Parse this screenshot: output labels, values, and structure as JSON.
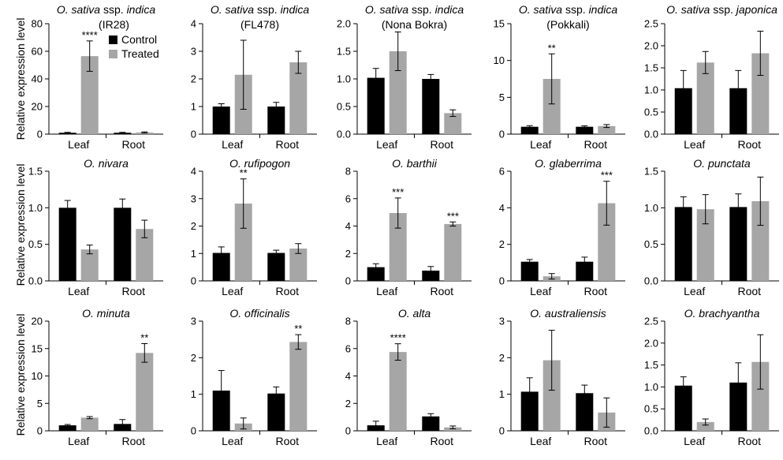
{
  "ylabel": "Relative expression level",
  "legend": {
    "control_label": "Control",
    "treated_label": "Treated",
    "control_color": "#000000",
    "treated_color": "#a6a6a6",
    "placement": "top-left of first panel"
  },
  "chart_data": [
    {
      "type": "bar",
      "title": "O. sativa",
      "title_suffix": "ssp. indica",
      "subtitle": "(IR28)",
      "categories": [
        "Leaf",
        "Root"
      ],
      "ylim": [
        0,
        80
      ],
      "yticks": [
        0,
        20,
        40,
        60,
        80
      ],
      "series": [
        {
          "name": "Control",
          "values": [
            1.0,
            1.0
          ],
          "errors": [
            0.3,
            0.3
          ]
        },
        {
          "name": "Treated",
          "values": [
            56.5,
            1.2
          ],
          "errors": [
            11.0,
            0.4
          ]
        }
      ],
      "annotations": [
        {
          "category": "Leaf",
          "series": "Treated",
          "text": "****"
        }
      ]
    },
    {
      "type": "bar",
      "title": "O. sativa",
      "title_suffix": "ssp. indica",
      "subtitle": "(FL478)",
      "categories": [
        "Leaf",
        "Root"
      ],
      "ylim": [
        0,
        4
      ],
      "yticks": [
        0,
        1,
        2,
        3,
        4
      ],
      "series": [
        {
          "name": "Control",
          "values": [
            1.0,
            1.0
          ],
          "errors": [
            0.1,
            0.15
          ]
        },
        {
          "name": "Treated",
          "values": [
            2.15,
            2.6
          ],
          "errors": [
            1.25,
            0.4
          ]
        }
      ],
      "annotations": []
    },
    {
      "type": "bar",
      "title": "O. sativa",
      "title_suffix": "ssp. indica",
      "subtitle": "(Nona Bokra)",
      "categories": [
        "Leaf",
        "Root"
      ],
      "ylim": [
        0,
        2.0
      ],
      "yticks": [
        0,
        0.5,
        1.0,
        1.5,
        2.0
      ],
      "series": [
        {
          "name": "Control",
          "values": [
            1.02,
            1.0
          ],
          "errors": [
            0.17,
            0.08
          ]
        },
        {
          "name": "Treated",
          "values": [
            1.5,
            0.38
          ],
          "errors": [
            0.35,
            0.06
          ]
        }
      ],
      "annotations": []
    },
    {
      "type": "bar",
      "title": "O. sativa",
      "title_suffix": "ssp. indica",
      "subtitle": "(Pokkali)",
      "categories": [
        "Leaf",
        "Root"
      ],
      "ylim": [
        0,
        15
      ],
      "yticks": [
        0,
        5,
        10,
        15
      ],
      "series": [
        {
          "name": "Control",
          "values": [
            1.0,
            1.0
          ],
          "errors": [
            0.15,
            0.12
          ]
        },
        {
          "name": "Treated",
          "values": [
            7.5,
            1.1
          ],
          "errors": [
            3.4,
            0.2
          ]
        }
      ],
      "annotations": [
        {
          "category": "Leaf",
          "series": "Treated",
          "text": "**"
        }
      ]
    },
    {
      "type": "bar",
      "title": "O. sativa",
      "title_suffix": "ssp. japonica",
      "subtitle": "",
      "categories": [
        "Leaf",
        "Root"
      ],
      "ylim": [
        0,
        2.5
      ],
      "yticks": [
        0,
        0.5,
        1.0,
        1.5,
        2.0,
        2.5
      ],
      "series": [
        {
          "name": "Control",
          "values": [
            1.04,
            1.04
          ],
          "errors": [
            0.4,
            0.4
          ]
        },
        {
          "name": "Treated",
          "values": [
            1.62,
            1.83
          ],
          "errors": [
            0.25,
            0.5
          ]
        }
      ],
      "annotations": []
    },
    {
      "type": "bar",
      "title": "O. nivara",
      "title_suffix": "",
      "subtitle": "",
      "categories": [
        "Leaf",
        "Root"
      ],
      "ylim": [
        0,
        1.5
      ],
      "yticks": [
        0,
        0.5,
        1.0,
        1.5
      ],
      "series": [
        {
          "name": "Control",
          "values": [
            1.0,
            1.0
          ],
          "errors": [
            0.1,
            0.12
          ]
        },
        {
          "name": "Treated",
          "values": [
            0.43,
            0.71
          ],
          "errors": [
            0.06,
            0.12
          ]
        }
      ],
      "annotations": []
    },
    {
      "type": "bar",
      "title": "O. rufipogon",
      "title_suffix": "",
      "subtitle": "",
      "categories": [
        "Leaf",
        "Root"
      ],
      "ylim": [
        0,
        4
      ],
      "yticks": [
        0,
        1,
        2,
        3,
        4
      ],
      "series": [
        {
          "name": "Control",
          "values": [
            1.02,
            1.02
          ],
          "errors": [
            0.22,
            0.1
          ]
        },
        {
          "name": "Treated",
          "values": [
            2.82,
            1.18
          ],
          "errors": [
            0.9,
            0.18
          ]
        }
      ],
      "annotations": [
        {
          "category": "Leaf",
          "series": "Treated",
          "text": "**"
        }
      ]
    },
    {
      "type": "bar",
      "title": "O. barthii",
      "title_suffix": "",
      "subtitle": "",
      "categories": [
        "Leaf",
        "Root"
      ],
      "ylim": [
        0,
        8
      ],
      "yticks": [
        0,
        2,
        4,
        6,
        8
      ],
      "series": [
        {
          "name": "Control",
          "values": [
            1.0,
            0.75
          ],
          "errors": [
            0.25,
            0.3
          ]
        },
        {
          "name": "Treated",
          "values": [
            4.95,
            4.15
          ],
          "errors": [
            1.1,
            0.15
          ]
        }
      ],
      "annotations": [
        {
          "category": "Leaf",
          "series": "Treated",
          "text": "***"
        },
        {
          "category": "Root",
          "series": "Treated",
          "text": "***"
        }
      ]
    },
    {
      "type": "bar",
      "title": "O. glaberrima",
      "title_suffix": "",
      "subtitle": "",
      "categories": [
        "Leaf",
        "Root"
      ],
      "ylim": [
        0,
        6
      ],
      "yticks": [
        0,
        2,
        4,
        6
      ],
      "series": [
        {
          "name": "Control",
          "values": [
            1.05,
            1.05
          ],
          "errors": [
            0.12,
            0.25
          ]
        },
        {
          "name": "Treated",
          "values": [
            0.25,
            4.25
          ],
          "errors": [
            0.15,
            1.2
          ]
        }
      ],
      "annotations": [
        {
          "category": "Root",
          "series": "Treated",
          "text": "***"
        }
      ]
    },
    {
      "type": "bar",
      "title": "O. punctata",
      "title_suffix": "",
      "subtitle": "",
      "categories": [
        "Leaf",
        "Root"
      ],
      "ylim": [
        0,
        1.5
      ],
      "yticks": [
        0,
        0.5,
        1.0,
        1.5
      ],
      "series": [
        {
          "name": "Control",
          "values": [
            1.01,
            1.01
          ],
          "errors": [
            0.14,
            0.18
          ]
        },
        {
          "name": "Treated",
          "values": [
            0.98,
            1.09
          ],
          "errors": [
            0.2,
            0.33
          ]
        }
      ],
      "annotations": []
    },
    {
      "type": "bar",
      "title": "O. minuta",
      "title_suffix": "",
      "subtitle": "",
      "categories": [
        "Leaf",
        "Root"
      ],
      "ylim": [
        0,
        20
      ],
      "yticks": [
        0,
        5,
        10,
        15,
        20
      ],
      "series": [
        {
          "name": "Control",
          "values": [
            1.0,
            1.25
          ],
          "errors": [
            0.15,
            0.8
          ]
        },
        {
          "name": "Treated",
          "values": [
            2.4,
            14.2
          ],
          "errors": [
            0.2,
            1.7
          ]
        }
      ],
      "annotations": [
        {
          "category": "Root",
          "series": "Treated",
          "text": "**"
        }
      ]
    },
    {
      "type": "bar",
      "title": "O. officinalis",
      "title_suffix": "",
      "subtitle": "",
      "categories": [
        "Leaf",
        "Root"
      ],
      "ylim": [
        0,
        3
      ],
      "yticks": [
        0,
        1,
        2,
        3
      ],
      "series": [
        {
          "name": "Control",
          "values": [
            1.1,
            1.02
          ],
          "errors": [
            0.55,
            0.18
          ]
        },
        {
          "name": "Treated",
          "values": [
            0.2,
            2.43
          ],
          "errors": [
            0.15,
            0.2
          ]
        }
      ],
      "annotations": [
        {
          "category": "Root",
          "series": "Treated",
          "text": "**"
        }
      ]
    },
    {
      "type": "bar",
      "title": "O. alta",
      "title_suffix": "",
      "subtitle": "",
      "categories": [
        "Leaf",
        "Root"
      ],
      "ylim": [
        0,
        8
      ],
      "yticks": [
        0,
        2,
        4,
        6,
        8
      ],
      "series": [
        {
          "name": "Control",
          "values": [
            0.4,
            1.05
          ],
          "errors": [
            0.3,
            0.2
          ]
        },
        {
          "name": "Treated",
          "values": [
            5.75,
            0.25
          ],
          "errors": [
            0.6,
            0.1
          ]
        }
      ],
      "annotations": [
        {
          "category": "Leaf",
          "series": "Treated",
          "text": "****"
        }
      ]
    },
    {
      "type": "bar",
      "title": "O. australiensis",
      "title_suffix": "",
      "subtitle": "",
      "categories": [
        "Leaf",
        "Root"
      ],
      "ylim": [
        0,
        3
      ],
      "yticks": [
        0,
        1,
        2,
        3
      ],
      "series": [
        {
          "name": "Control",
          "values": [
            1.07,
            1.03
          ],
          "errors": [
            0.38,
            0.22
          ]
        },
        {
          "name": "Treated",
          "values": [
            1.93,
            0.5
          ],
          "errors": [
            0.82,
            0.4
          ]
        }
      ],
      "annotations": []
    },
    {
      "type": "bar",
      "title": "O. brachyantha",
      "title_suffix": "",
      "subtitle": "",
      "categories": [
        "Leaf",
        "Root"
      ],
      "ylim": [
        0,
        2.5
      ],
      "yticks": [
        0,
        0.5,
        1.0,
        1.5,
        2.0,
        2.5
      ],
      "series": [
        {
          "name": "Control",
          "values": [
            1.03,
            1.1
          ],
          "errors": [
            0.2,
            0.45
          ]
        },
        {
          "name": "Treated",
          "values": [
            0.2,
            1.57
          ],
          "errors": [
            0.07,
            0.62
          ]
        }
      ],
      "annotations": []
    }
  ]
}
